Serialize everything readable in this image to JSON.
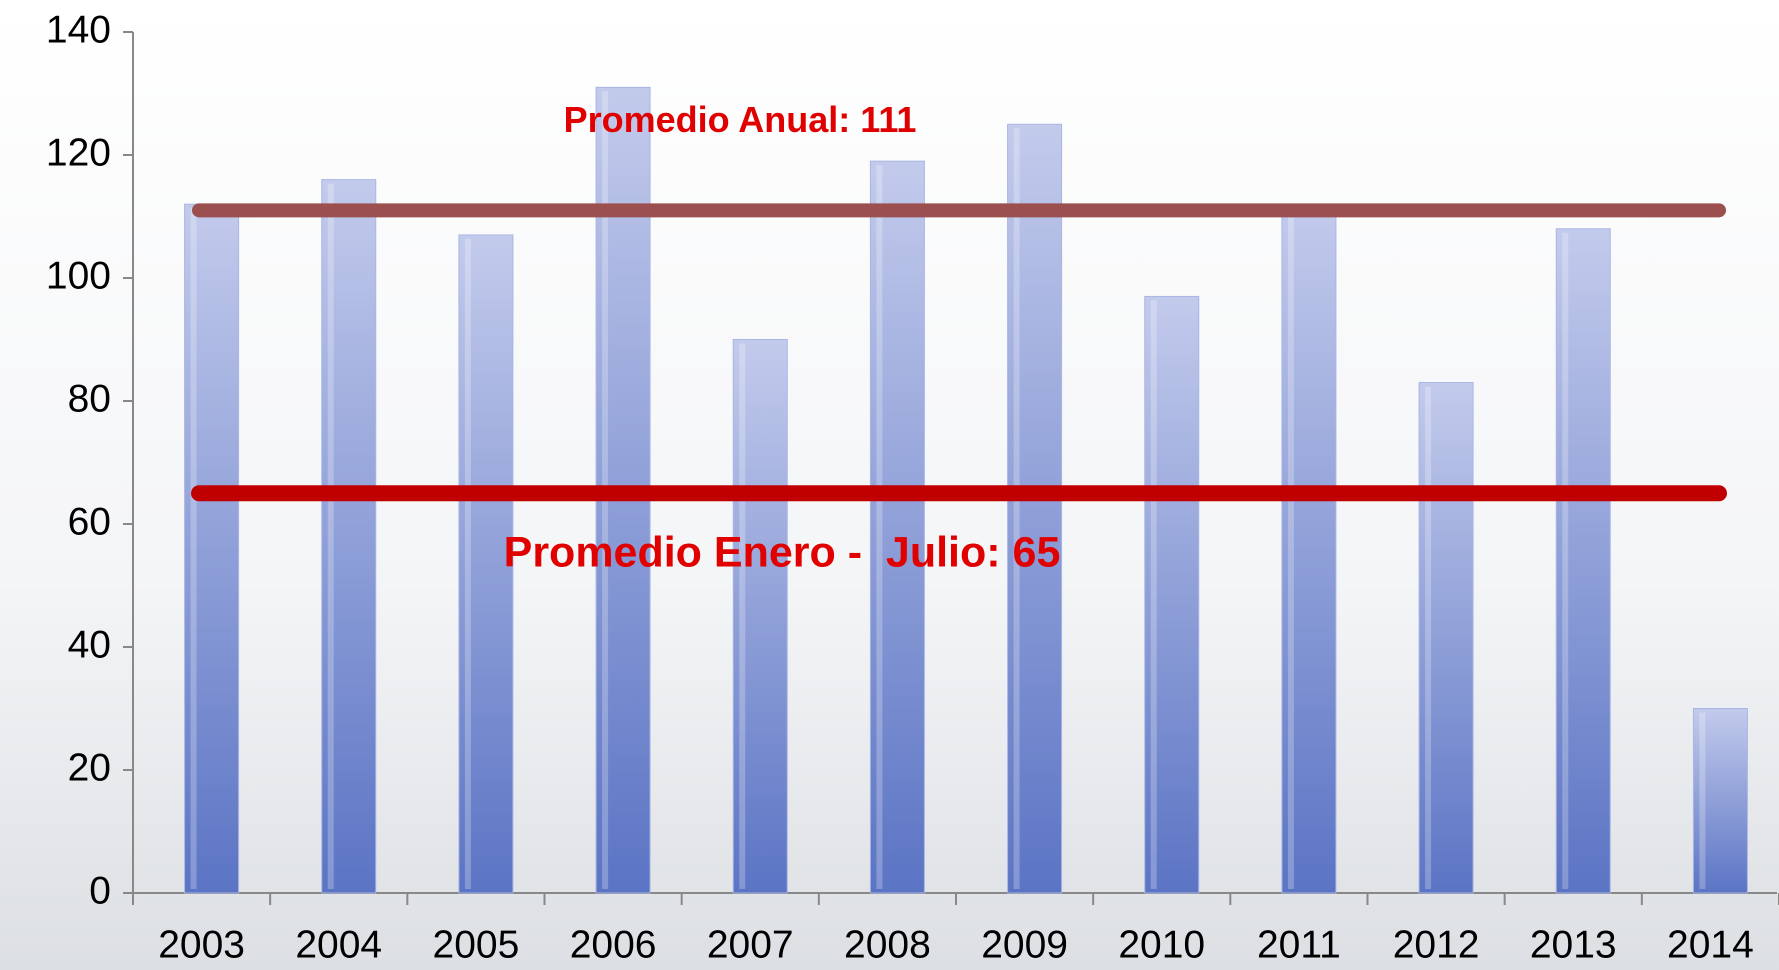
{
  "chart_data": {
    "type": "bar",
    "categories": [
      "2003",
      "2004",
      "2005",
      "2006",
      "2007",
      "2008",
      "2009",
      "2010",
      "2011",
      "2012",
      "2013",
      "2014"
    ],
    "values": [
      112,
      116,
      107,
      131,
      90,
      119,
      125,
      97,
      112,
      83,
      108,
      30
    ],
    "color": "#7b8fd4",
    "ylim": [
      0,
      140
    ],
    "yticks": [
      0,
      20,
      40,
      60,
      80,
      100,
      120,
      140
    ],
    "reference_lines": [
      {
        "label": "Promedio Anual: 111",
        "value": 111,
        "color": "#9b4f4f"
      },
      {
        "label": "Promedio Enero -  Julio: 65",
        "value": 65,
        "color": "#c00000"
      }
    ]
  }
}
